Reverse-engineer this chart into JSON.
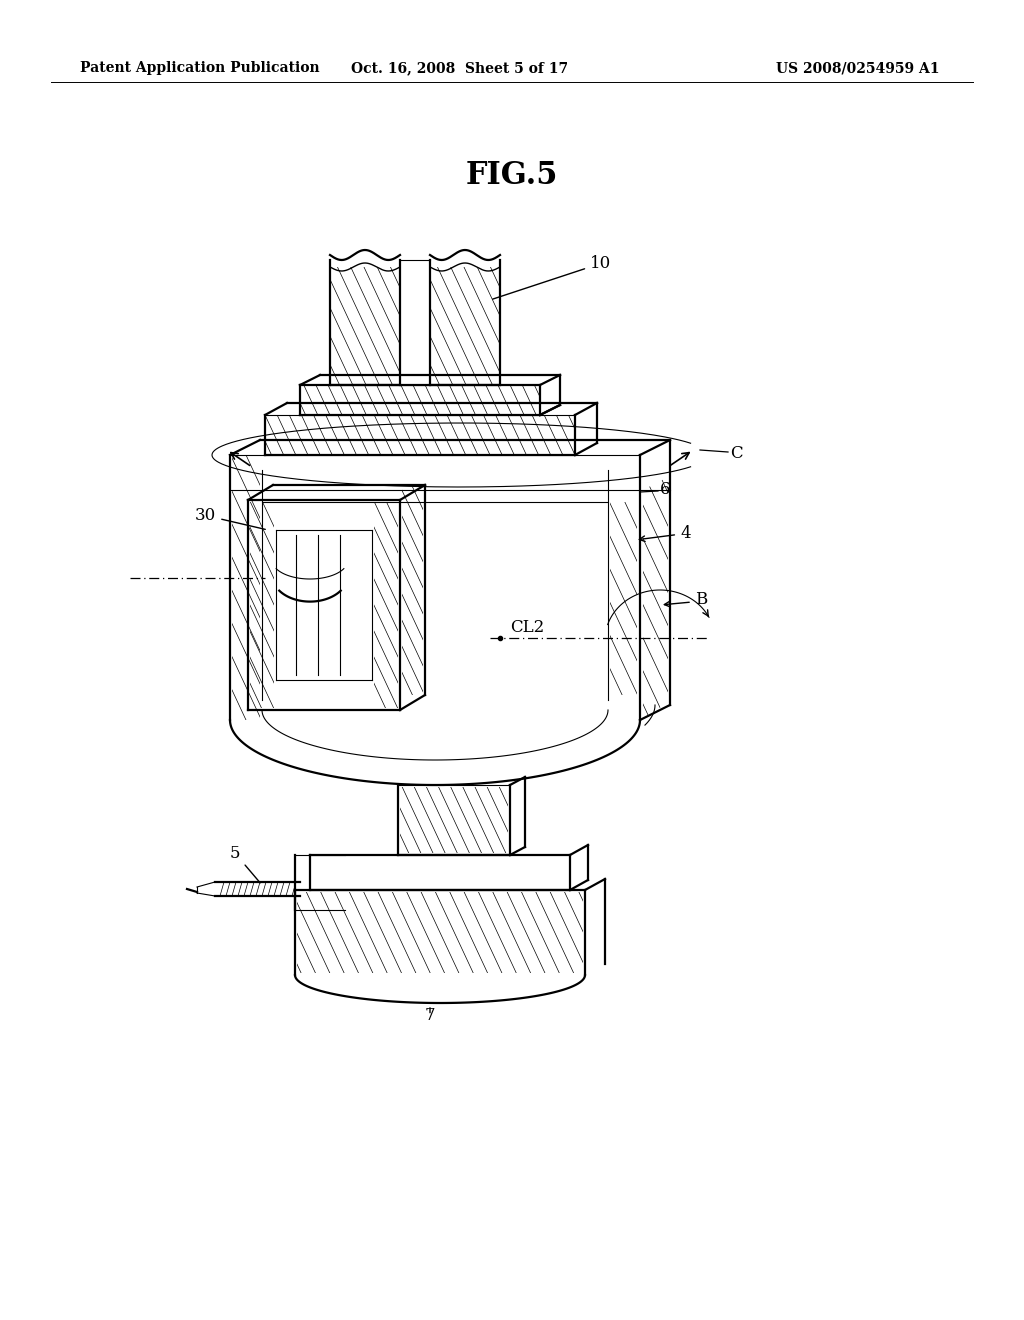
{
  "background_color": "#ffffff",
  "header_left": "Patent Application Publication",
  "header_center": "Oct. 16, 2008  Sheet 5 of 17",
  "header_right": "US 2008/0254959 A1",
  "fig_title": "FIG.5",
  "page_width": 10.24,
  "page_height": 13.2,
  "dpi": 100,
  "lw_main": 1.6,
  "lw_thin": 0.8,
  "lw_hatch": 0.5
}
